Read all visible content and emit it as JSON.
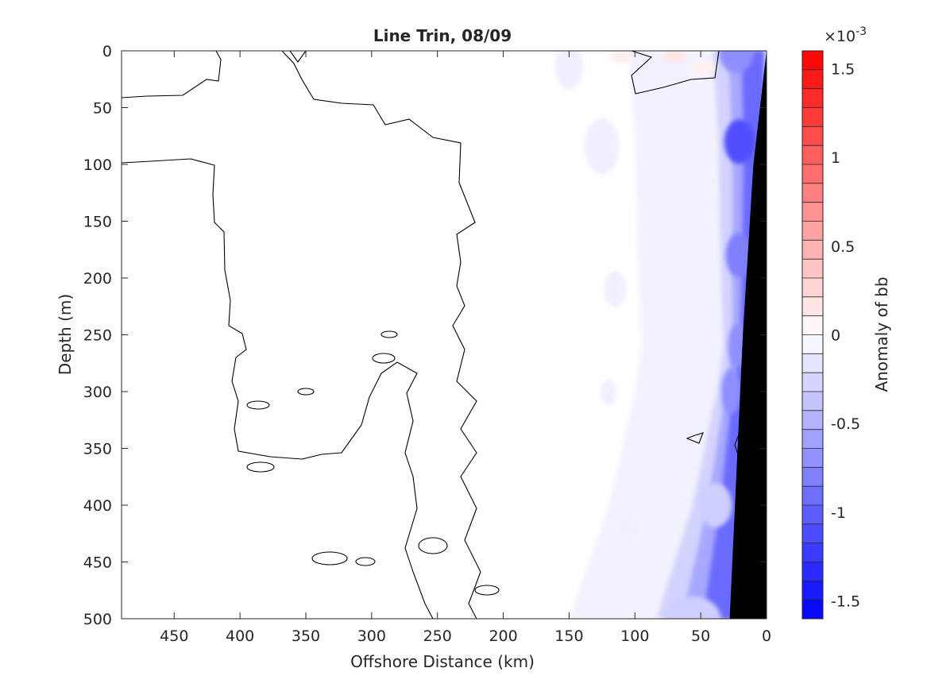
{
  "chart_data": {
    "type": "heatmap",
    "subtype": "filled contour section with zero contour line",
    "title": "Line Trin, 08/09",
    "xlabel": "Offshore Distance (km)",
    "ylabel": "Depth (m)",
    "xlim": [
      490,
      0
    ],
    "x_reversed": true,
    "ylim": [
      0,
      500
    ],
    "y_reversed": true,
    "x_ticks": [
      450,
      400,
      350,
      300,
      250,
      200,
      150,
      100,
      50,
      0
    ],
    "y_ticks": [
      0,
      50,
      100,
      150,
      200,
      250,
      300,
      350,
      400,
      450,
      500
    ],
    "x_tick_labels": [
      "450",
      "400",
      "350",
      "300",
      "250",
      "200",
      "150",
      "100",
      "50",
      "0"
    ],
    "y_tick_labels": [
      "0",
      "50",
      "100",
      "150",
      "200",
      "250",
      "300",
      "350",
      "400",
      "450",
      "500"
    ],
    "colorbar": {
      "label": "Anomaly of bb",
      "exponent_label": "×10",
      "exponent_power": "-3",
      "range": [
        -1.6,
        1.6
      ],
      "levels": 30,
      "tick_values": [
        1.5,
        1,
        0.5,
        0,
        -0.5,
        -1,
        -1.5
      ],
      "tick_labels": [
        "1.5",
        "1",
        "0.5",
        "0",
        "-0.5",
        "-1",
        "-1.5"
      ],
      "colormap": "blue-white-red",
      "colors": {
        "negative": "#0000ff",
        "zero": "#ffffff",
        "positive": "#ff0000"
      }
    },
    "bathymetry": {
      "color": "#000000",
      "bottom_depth_at_x": [
        [
          0,
          0
        ],
        [
          10,
          100
        ],
        [
          18,
          250
        ],
        [
          22,
          350
        ],
        [
          28,
          500
        ]
      ]
    },
    "anomaly_field": {
      "units": "×10^-3",
      "nearshore_minimum": [
        {
          "x": 45,
          "x2": 5,
          "depth": 0,
          "value": -0.7
        },
        {
          "x": 40,
          "x2": 5,
          "depth": 80,
          "value": -1.1
        },
        {
          "x": 38,
          "x2": 8,
          "depth": 180,
          "value": -0.8
        },
        {
          "x": 35,
          "x2": 12,
          "depth": 260,
          "value": -0.7
        },
        {
          "x": 40,
          "x2": 18,
          "depth": 300,
          "value": -0.7
        },
        {
          "x": 60,
          "x2": 22,
          "depth": 400,
          "value": -0.3
        },
        {
          "x": 90,
          "x2": 26,
          "depth": 500,
          "value": -0.3
        }
      ],
      "offshore_values": "near 0 (-0.1 to 0.1)",
      "surface_positive_patches": [
        {
          "x": 110,
          "depth": 5,
          "value": 0.1
        },
        {
          "x": 70,
          "depth": 5,
          "value": 0.15
        },
        {
          "x": 48,
          "depth": 15,
          "value": 0.1
        }
      ]
    },
    "zero_contour_note": "thin black line marking the 0 contour of the anomaly"
  }
}
